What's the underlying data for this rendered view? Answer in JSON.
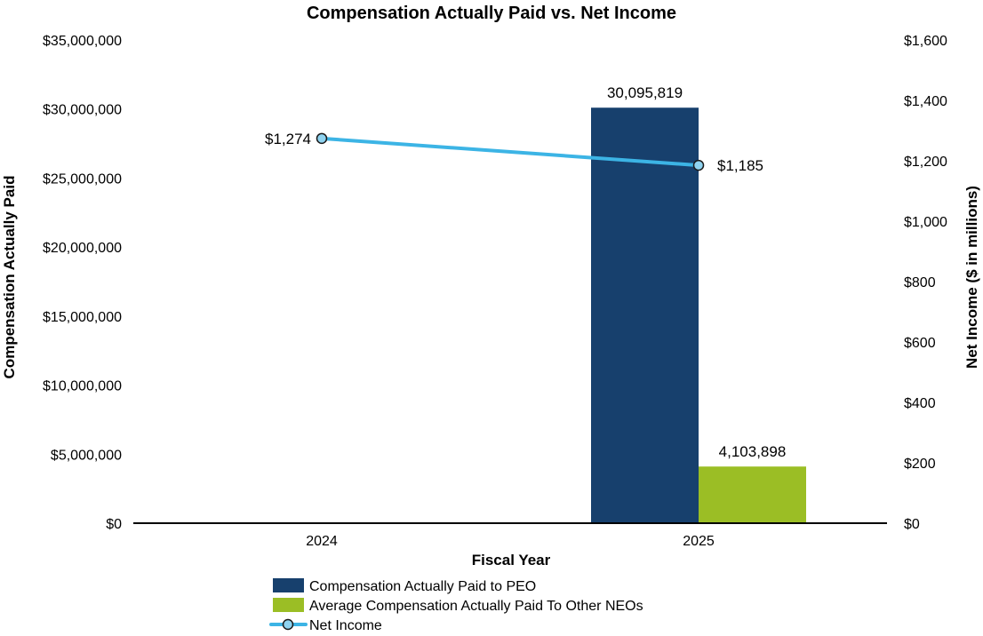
{
  "chart_data": {
    "type": "bar",
    "title": "Compensation Actually Paid vs. Net Income",
    "xlabel": "Fiscal Year",
    "ylabel": "Compensation Actually Paid",
    "y2label": "Net Income ($ in millions)",
    "categories": [
      "2024",
      "2025"
    ],
    "ylim": [
      0,
      35000000
    ],
    "y_ticks": [
      0,
      5000000,
      10000000,
      15000000,
      20000000,
      25000000,
      30000000,
      35000000
    ],
    "y_tick_labels": [
      "$0",
      "$5,000,000",
      "$10,000,000",
      "$15,000,000",
      "$20,000,000",
      "$25,000,000",
      "$30,000,000",
      "$35,000,000"
    ],
    "y2lim": [
      0,
      1600
    ],
    "y2_ticks": [
      0,
      200,
      400,
      600,
      800,
      1000,
      1200,
      1400,
      1600
    ],
    "y2_tick_labels": [
      "$0",
      "$200",
      "$400",
      "$600",
      "$800",
      "$1,000",
      "$1,200",
      "$1,400",
      "$1,600"
    ],
    "series": [
      {
        "name": "Compensation Actually Paid to PEO",
        "kind": "bar",
        "axis": "left",
        "color": "#17406D",
        "values": [
          null,
          30095819
        ],
        "labels": [
          "",
          "30,095,819"
        ]
      },
      {
        "name": "Average Compensation Actually Paid To Other NEOs",
        "kind": "bar",
        "axis": "left",
        "color": "#9BBE25",
        "values": [
          null,
          4103898
        ],
        "labels": [
          "",
          "4,103,898"
        ]
      },
      {
        "name": "Net Income",
        "kind": "line",
        "axis": "right",
        "color": "#3CB4E5",
        "marker_fill": "#8FD3F0",
        "values": [
          1274,
          1185
        ],
        "labels": [
          "$1,274",
          "$1,185"
        ]
      }
    ],
    "grid": false,
    "legend_position": "bottom"
  }
}
